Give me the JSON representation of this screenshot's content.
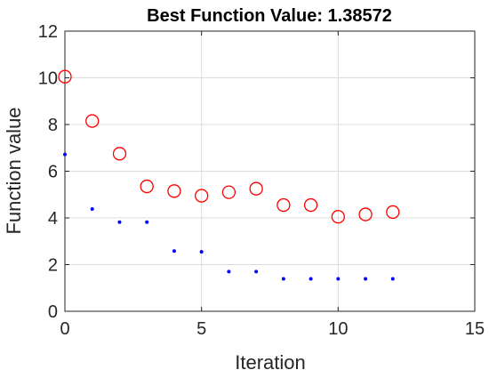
{
  "chart_data": {
    "type": "scatter",
    "title": "Best Function Value: 1.38572",
    "xlabel": "Iteration",
    "ylabel": "Function value",
    "xlim": [
      0,
      15
    ],
    "ylim": [
      0,
      12
    ],
    "xticks": [
      "0",
      "5",
      "10",
      "15"
    ],
    "yticks": [
      "0",
      "2",
      "4",
      "6",
      "8",
      "10",
      "12"
    ],
    "grid": true,
    "series": [
      {
        "marker": "circle",
        "color": "#ff0000",
        "x": [
          0,
          1,
          2,
          3,
          4,
          5,
          6,
          7,
          8,
          9,
          10,
          11,
          12
        ],
        "y": [
          10.05,
          8.15,
          6.75,
          5.35,
          5.15,
          4.95,
          5.1,
          5.25,
          4.55,
          4.55,
          4.05,
          4.15,
          4.25
        ]
      },
      {
        "marker": "dot",
        "color": "#0000ff",
        "x": [
          0,
          1,
          2,
          3,
          4,
          5,
          6,
          7,
          8,
          9,
          10,
          11,
          12
        ],
        "y": [
          6.72,
          4.38,
          3.82,
          3.82,
          2.58,
          2.55,
          1.7,
          1.7,
          1.39,
          1.39,
          1.39,
          1.39,
          1.39
        ]
      }
    ]
  }
}
